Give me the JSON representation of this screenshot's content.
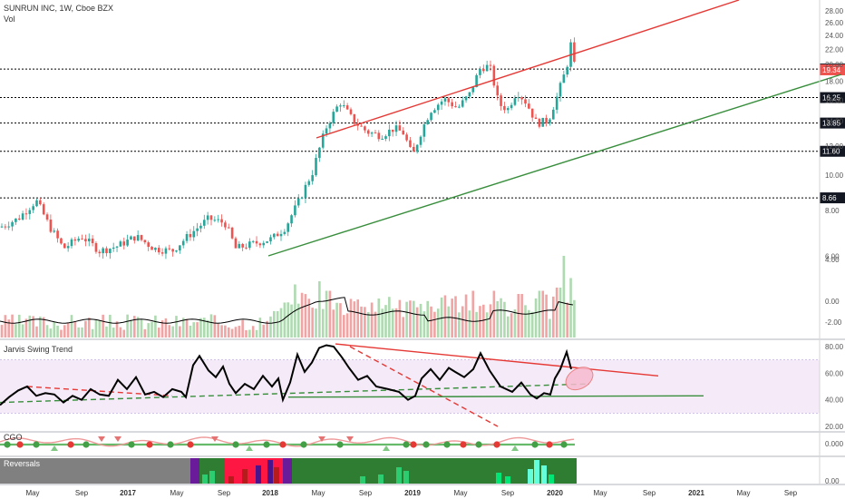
{
  "header": {
    "symbol_line": "SUNRUN INC, 1W, Cboe BZX",
    "vol_label": "Vol"
  },
  "panes": {
    "swing_title": "Jarvis Swing Trend",
    "cgo_title": "CGO",
    "reversals_title": "Reversals"
  },
  "chart_data": {
    "type": "candlestick",
    "price_axis": {
      "ticks": [
        "28.00",
        "26.00",
        "24.00",
        "22.00",
        "20.00",
        "18.00",
        "16.00",
        "14.00",
        "12.00",
        "10.00",
        "8.00",
        "6.00",
        "4.00",
        "0.00",
        "-2.00"
      ],
      "scale": "log"
    },
    "price_levels": [
      {
        "label": "19.44",
        "value": 19.44,
        "style": "dotted",
        "highlight": false
      },
      {
        "label": "19.34",
        "value": 19.34,
        "style": "none",
        "highlight": true
      },
      {
        "label": "16.25",
        "value": 16.25,
        "style": "dotted",
        "highlight": false
      },
      {
        "label": "13.85",
        "value": 13.85,
        "style": "dotted",
        "highlight": false
      },
      {
        "label": "11.60",
        "value": 11.6,
        "style": "dotted",
        "highlight": false
      },
      {
        "label": "8.66",
        "value": 8.66,
        "style": "dotted",
        "highlight": false
      }
    ],
    "x_axis": {
      "ticks": [
        "May",
        "Sep",
        "2017",
        "May",
        "Sep",
        "2018",
        "May",
        "Sep",
        "2019",
        "May",
        "Sep",
        "2020",
        "May",
        "Sep",
        "2021",
        "May",
        "Sep"
      ]
    },
    "close_anchors": [
      [
        0,
        7.2
      ],
      [
        20,
        7.6
      ],
      [
        40,
        8.5
      ],
      [
        55,
        7.2
      ],
      [
        70,
        6.3
      ],
      [
        90,
        6.8
      ],
      [
        110,
        6.2
      ],
      [
        130,
        6.4
      ],
      [
        150,
        6.8
      ],
      [
        170,
        6.3
      ],
      [
        190,
        6.2
      ],
      [
        210,
        6.9
      ],
      [
        230,
        7.6
      ],
      [
        248,
        7.4
      ],
      [
        260,
        6.3
      ],
      [
        280,
        6.5
      ],
      [
        300,
        6.7
      ],
      [
        315,
        7.2
      ],
      [
        330,
        8.5
      ],
      [
        345,
        10.2
      ],
      [
        360,
        13.5
      ],
      [
        375,
        15.8
      ],
      [
        390,
        14.0
      ],
      [
        405,
        13.1
      ],
      [
        420,
        12.8
      ],
      [
        435,
        13.4
      ],
      [
        445,
        13.0
      ],
      [
        455,
        11.2
      ],
      [
        465,
        13.2
      ],
      [
        475,
        15.0
      ],
      [
        490,
        16.1
      ],
      [
        505,
        15.2
      ],
      [
        518,
        16.6
      ],
      [
        530,
        19.6
      ],
      [
        540,
        19.8
      ],
      [
        550,
        15.6
      ],
      [
        560,
        15.1
      ],
      [
        570,
        16.9
      ],
      [
        580,
        15.8
      ],
      [
        592,
        13.8
      ],
      [
        605,
        14.1
      ],
      [
        615,
        16.5
      ],
      [
        625,
        19.6
      ],
      [
        630,
        23.0
      ],
      [
        634,
        19.34
      ]
    ],
    "volume": {
      "axis_ticks": [
        "4.00",
        "0.00",
        "-2.00"
      ],
      "spikes": [
        [
          326,
          0.55
        ],
        [
          352,
          0.6
        ],
        [
          362,
          0.45
        ],
        [
          521,
          0.45
        ],
        [
          546,
          0.45
        ],
        [
          574,
          0.4
        ],
        [
          597,
          0.45
        ],
        [
          616,
          0.5
        ],
        [
          623,
          1.0
        ],
        [
          630,
          0.65
        ]
      ]
    },
    "trendlines": [
      {
        "name": "upper-resistance",
        "color": "#e53935",
        "from": [
          349,
          152
        ],
        "to": [
          815,
          0
        ]
      },
      {
        "name": "lower-support",
        "color": "#388e3c",
        "from": [
          296,
          282
        ],
        "to": [
          928,
          82
        ]
      }
    ],
    "swing_trend": {
      "axis_ticks": [
        "80.00",
        "60.00",
        "40.00",
        "20.00"
      ],
      "band": [
        30,
        70
      ],
      "line": [
        [
          0,
          36
        ],
        [
          10,
          42
        ],
        [
          20,
          47
        ],
        [
          30,
          50
        ],
        [
          40,
          43
        ],
        [
          50,
          45
        ],
        [
          60,
          44
        ],
        [
          70,
          38
        ],
        [
          80,
          43
        ],
        [
          90,
          40
        ],
        [
          100,
          48
        ],
        [
          110,
          44
        ],
        [
          120,
          43
        ],
        [
          130,
          55
        ],
        [
          140,
          48
        ],
        [
          150,
          57
        ],
        [
          160,
          44
        ],
        [
          170,
          46
        ],
        [
          180,
          42
        ],
        [
          190,
          48
        ],
        [
          200,
          46
        ],
        [
          205,
          42
        ],
        [
          213,
          66
        ],
        [
          220,
          73
        ],
        [
          230,
          62
        ],
        [
          238,
          57
        ],
        [
          246,
          65
        ],
        [
          253,
          52
        ],
        [
          260,
          45
        ],
        [
          270,
          52
        ],
        [
          280,
          48
        ],
        [
          290,
          58
        ],
        [
          300,
          50
        ],
        [
          307,
          56
        ],
        [
          312,
          40
        ],
        [
          320,
          53
        ],
        [
          328,
          74
        ],
        [
          336,
          61
        ],
        [
          344,
          68
        ],
        [
          352,
          79
        ],
        [
          360,
          81
        ],
        [
          368,
          80
        ],
        [
          377,
          72
        ],
        [
          385,
          64
        ],
        [
          395,
          55
        ],
        [
          405,
          58
        ],
        [
          415,
          50
        ],
        [
          428,
          48
        ],
        [
          440,
          46
        ],
        [
          450,
          40
        ],
        [
          458,
          43
        ],
        [
          465,
          56
        ],
        [
          475,
          63
        ],
        [
          485,
          55
        ],
        [
          495,
          64
        ],
        [
          502,
          61
        ],
        [
          512,
          57
        ],
        [
          522,
          63
        ],
        [
          530,
          75
        ],
        [
          540,
          62
        ],
        [
          552,
          50
        ],
        [
          565,
          46
        ],
        [
          575,
          53
        ],
        [
          585,
          44
        ],
        [
          592,
          41
        ],
        [
          600,
          45
        ],
        [
          607,
          44
        ],
        [
          612,
          56
        ],
        [
          618,
          63
        ],
        [
          625,
          76
        ],
        [
          630,
          63
        ]
      ],
      "lines": [
        {
          "color": "#e53935",
          "dash": false,
          "from": [
            370,
            82
          ],
          "to": [
            726,
            58
          ]
        },
        {
          "color": "#e53935",
          "dash": true,
          "from": [
            386,
            80
          ],
          "to": [
            549,
            20
          ]
        },
        {
          "color": "#388e3c",
          "dash": false,
          "from": [
            318,
            42
          ],
          "to": [
            776,
            43
          ]
        },
        {
          "color": "#388e3c",
          "dash": true,
          "from": [
            0,
            38
          ],
          "to": [
            650,
            52
          ]
        },
        {
          "color": "#e53935",
          "dash": true,
          "from": [
            30,
            50
          ],
          "to": [
            190,
            43
          ]
        }
      ],
      "ellipse_marker": {
        "x": 639,
        "y": 56
      }
    },
    "cgo": {
      "axis_ticks": [
        "0.000"
      ],
      "markers": [
        {
          "x": 8,
          "k": "gc"
        },
        {
          "x": 22,
          "k": "rc"
        },
        {
          "x": 40,
          "k": "gc"
        },
        {
          "x": 60,
          "k": "gt"
        },
        {
          "x": 78,
          "k": "rc"
        },
        {
          "x": 95,
          "k": "gc"
        },
        {
          "x": 112,
          "k": "rt"
        },
        {
          "x": 130,
          "k": "rt"
        },
        {
          "x": 145,
          "k": "gc"
        },
        {
          "x": 165,
          "k": "rc"
        },
        {
          "x": 188,
          "k": "gc"
        },
        {
          "x": 210,
          "k": "rc"
        },
        {
          "x": 237,
          "k": "rt"
        },
        {
          "x": 260,
          "k": "gc"
        },
        {
          "x": 275,
          "k": "gt"
        },
        {
          "x": 294,
          "k": "gc"
        },
        {
          "x": 312,
          "k": "rc"
        },
        {
          "x": 335,
          "k": "gc"
        },
        {
          "x": 355,
          "k": "rt"
        },
        {
          "x": 375,
          "k": "gc"
        },
        {
          "x": 386,
          "k": "rt"
        },
        {
          "x": 426,
          "k": "gt"
        },
        {
          "x": 448,
          "k": "gc"
        },
        {
          "x": 456,
          "k": "rc"
        },
        {
          "x": 470,
          "k": "gc"
        },
        {
          "x": 493,
          "k": "gc"
        },
        {
          "x": 511,
          "k": "rc"
        },
        {
          "x": 528,
          "k": "gc"
        },
        {
          "x": 548,
          "k": "rc"
        },
        {
          "x": 568,
          "k": "gt"
        },
        {
          "x": 590,
          "k": "gc"
        },
        {
          "x": 606,
          "k": "rc"
        },
        {
          "x": 622,
          "k": "gc"
        }
      ]
    },
    "reversals": {
      "axis_ticks": [
        "0.00"
      ],
      "segments": [
        {
          "from": 0,
          "to": 210,
          "color": "#808080"
        },
        {
          "from": 210,
          "to": 220,
          "color": "#6a1b9a"
        },
        {
          "from": 220,
          "to": 248,
          "color": "#2e7d32"
        },
        {
          "from": 248,
          "to": 312,
          "color": "#ff1744"
        },
        {
          "from": 312,
          "to": 322,
          "color": "#6a1b9a"
        },
        {
          "from": 322,
          "to": 636,
          "color": "#2e7d32"
        }
      ],
      "overlay": [
        {
          "x": 226,
          "h": 10,
          "c": "#2ecc71"
        },
        {
          "x": 234,
          "h": 14,
          "c": "#2ecc71"
        },
        {
          "x": 255,
          "h": 8,
          "c": "#b71c1c"
        },
        {
          "x": 270,
          "h": 16,
          "c": "#b71c1c"
        },
        {
          "x": 285,
          "h": 20,
          "c": "#4a148c"
        },
        {
          "x": 298,
          "h": 26,
          "c": "#4a148c"
        },
        {
          "x": 305,
          "h": 18,
          "c": "#b71c1c"
        },
        {
          "x": 400,
          "h": 8,
          "c": "#2ecc71"
        },
        {
          "x": 420,
          "h": 10,
          "c": "#2ecc71"
        },
        {
          "x": 440,
          "h": 18,
          "c": "#2ecc71"
        },
        {
          "x": 448,
          "h": 14,
          "c": "#2ecc71"
        },
        {
          "x": 550,
          "h": 12,
          "c": "#00e676"
        },
        {
          "x": 560,
          "h": 8,
          "c": "#00e676"
        },
        {
          "x": 585,
          "h": 16,
          "c": "#64ffda"
        },
        {
          "x": 592,
          "h": 26,
          "c": "#64ffda"
        },
        {
          "x": 600,
          "h": 20,
          "c": "#64ffda"
        },
        {
          "x": 608,
          "h": 10,
          "c": "#00e676"
        }
      ]
    }
  }
}
